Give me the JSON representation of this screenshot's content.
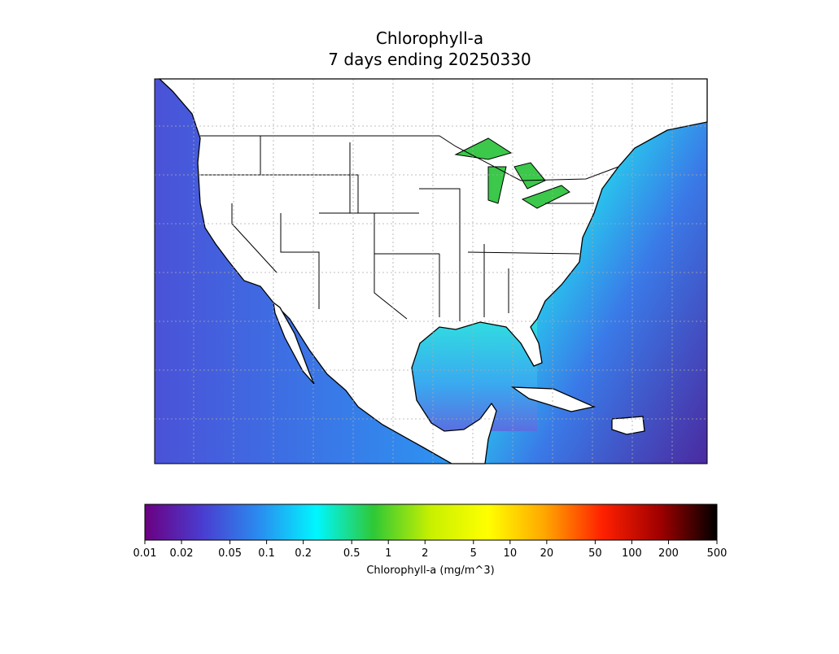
{
  "map": {
    "title": "Chlorophyll-a",
    "subtitle": "7 days ending 20250330"
  },
  "colorbar": {
    "label": "Chlorophyll-a (mg/m^3)",
    "scale": "log",
    "lim": [
      0.01,
      500
    ],
    "ticks": [
      0.01,
      0.02,
      0.05,
      0.1,
      0.2,
      0.5,
      1,
      2,
      5,
      10,
      20,
      50,
      100,
      200,
      500
    ],
    "colors": [
      "#6b0081",
      "#4a3cd0",
      "#2a8cf0",
      "#00f6ff",
      "#2fc836",
      "#c8f000",
      "#ffff00",
      "#ffa500",
      "#ff2000",
      "#a00000",
      "#000000"
    ]
  }
}
